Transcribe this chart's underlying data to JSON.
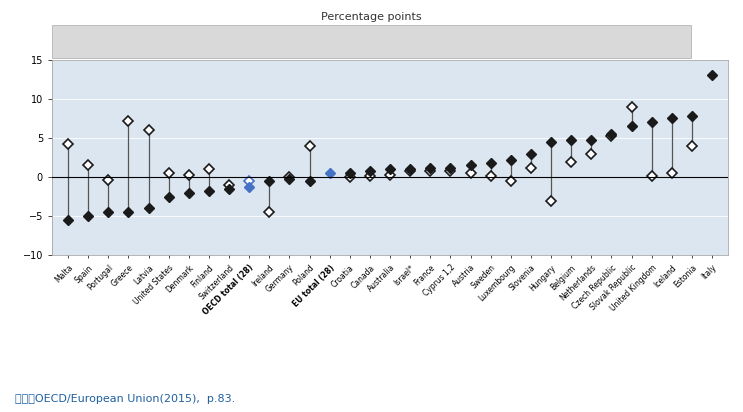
{
  "title": "Percentage points",
  "caption": "자료：OECD/European Union(2015),  p.83.",
  "ylim": [
    -10,
    15
  ],
  "yticks": [
    -10,
    -5,
    0,
    5,
    10,
    15
  ],
  "bg_color": "#dce6f1",
  "countries": [
    "Malta",
    "Spain",
    "Portugal",
    "Greece",
    "Latvia",
    "United States",
    "Denmark",
    "Finland",
    "Switzerland",
    "OECD total (28)",
    "Ireland",
    "Germany",
    "Poland",
    "EU total (28)",
    "Croatia",
    "Canada",
    "Australia",
    "Israel*",
    "France",
    "Cyprus 1,2",
    "Austria",
    "Sweden",
    "Luxembourg",
    "Slovenia",
    "Hungary",
    "Belgium",
    "Netherlands",
    "Czech Republic",
    "Slovak Republic",
    "United Kingdom",
    "Iceland",
    "Estonia",
    "Italy"
  ],
  "bold_labels": [
    "OECD total (28)",
    "EU total (28)"
  ],
  "foreign_born": [
    -5.5,
    -5.0,
    -4.5,
    -4.5,
    -4.0,
    -2.5,
    -2.0,
    -1.8,
    -1.5,
    -1.2,
    -0.5,
    -0.2,
    -0.5,
    0.5,
    0.5,
    0.8,
    1.0,
    1.0,
    1.2,
    1.2,
    1.5,
    1.8,
    2.2,
    3.0,
    4.5,
    4.8,
    4.8,
    5.5,
    6.5,
    7.0,
    7.5,
    7.8,
    13.0
  ],
  "native_born": [
    4.2,
    1.5,
    -0.3,
    7.2,
    6.0,
    0.5,
    0.3,
    1.0,
    -1.0,
    -0.5,
    -4.5,
    0.0,
    4.0,
    null,
    0.0,
    0.2,
    0.3,
    0.8,
    0.8,
    0.8,
    0.5,
    0.2,
    -0.5,
    1.2,
    -3.0,
    2.0,
    3.0,
    5.2,
    9.0,
    0.2,
    0.5,
    4.0,
    null
  ],
  "blue_indices": [
    9,
    13
  ],
  "foreign_color": "#1a1a1a",
  "native_color": "#1a1a1a",
  "blue_color": "#4472c4",
  "line_color": "#555555"
}
